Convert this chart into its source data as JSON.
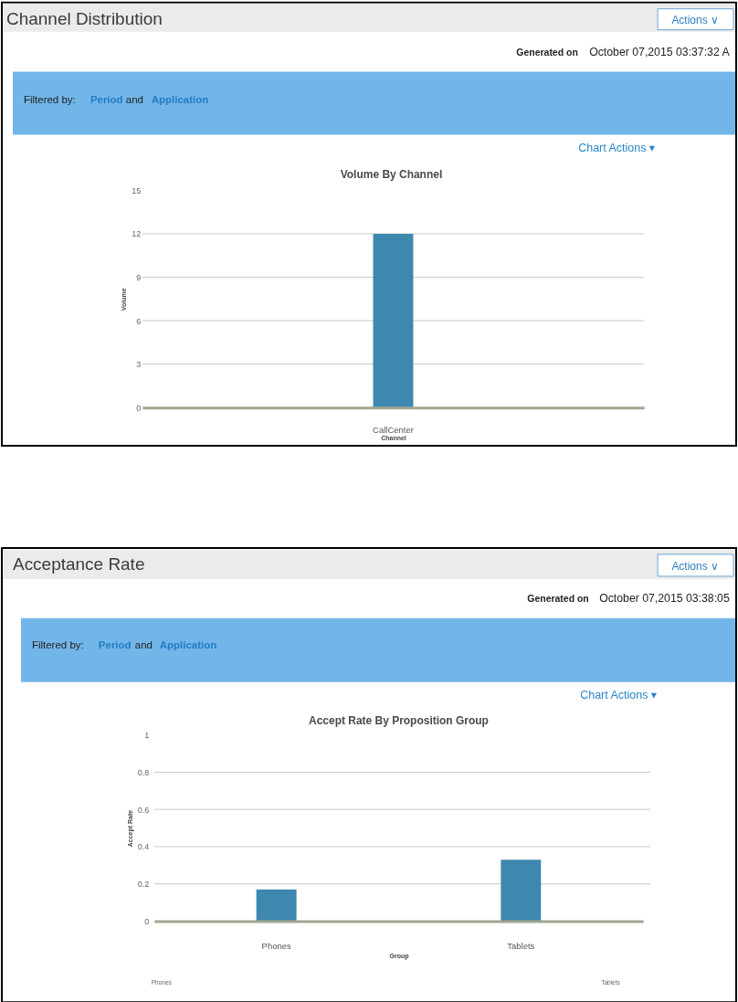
{
  "chart_data": [
    {
      "type": "bar",
      "title": "Volume By Channel",
      "xlabel": "Channel",
      "ylabel": "Volume",
      "categories": [
        "CallCenter"
      ],
      "values": [
        12
      ],
      "color": "#3e88b0",
      "ylim": [
        0,
        15
      ],
      "yticks": [
        0,
        3,
        6,
        9,
        12,
        15
      ],
      "grid": "y",
      "annotations": [
        "Channel Distribution",
        "Actions ∨",
        "Generated on",
        "October 07,2015 03:37:32 A",
        "Filtered by:",
        "Period",
        "and",
        "Application",
        "Chart Actions ▾"
      ]
    },
    {
      "type": "bar",
      "title": "Accept Rate By Proposition Group",
      "xlabel": "Group",
      "ylabel": "Accept Rate",
      "categories": [
        "Phones",
        "Tablets"
      ],
      "values": [
        0.17,
        0.33
      ],
      "color": "#3e88b0",
      "ylim": [
        0,
        1
      ],
      "yticks": [
        0,
        0.2,
        0.4,
        0.6,
        0.8,
        1
      ],
      "grid": "y",
      "annotations": [
        "Acceptance Rate",
        "Actions ∨",
        "Generated on",
        "October 07,2015 03:38:05",
        "Filtered by:",
        "Period",
        "and",
        "Application",
        "Chart Actions ▾",
        "Phones",
        "Tablets"
      ]
    }
  ]
}
